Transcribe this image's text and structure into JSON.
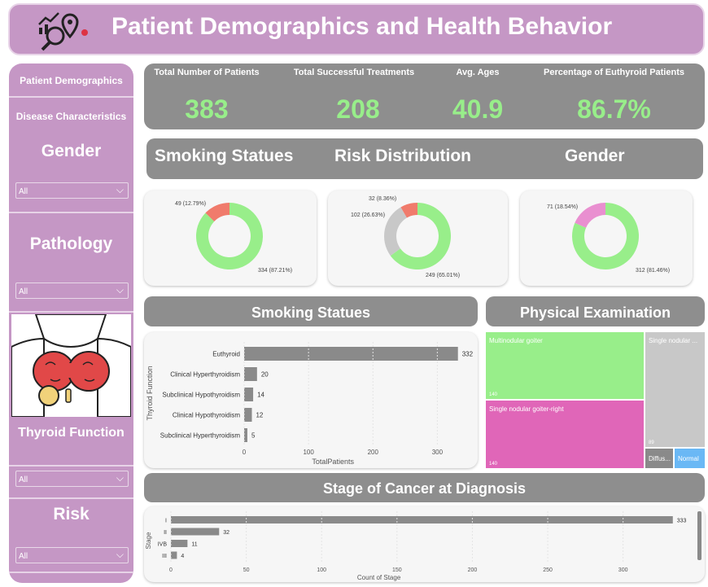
{
  "header": {
    "title": "Patient Demographics and Health Behavior"
  },
  "sidebar": {
    "nav": [
      "Patient Demographics",
      "Disease Characteristics"
    ],
    "filters": [
      {
        "label": "Gender",
        "value": "All"
      },
      {
        "label": "Pathology",
        "value": "All"
      },
      {
        "label": "Thyroid Function",
        "value": "All"
      },
      {
        "label": "Risk",
        "value": "All"
      }
    ]
  },
  "kpis": [
    {
      "label": "Total Number of Patients",
      "value": "383"
    },
    {
      "label": "Total Successful Treatments",
      "value": "208"
    },
    {
      "label": "Avg. Ages",
      "value": "40.9"
    },
    {
      "label": "Percentage of Euthyroid Patients",
      "value": "86.7%"
    }
  ],
  "section_titles": {
    "smoking": "Smoking Statues",
    "risk": "Risk Distribution",
    "gender": "Gender",
    "smoking2": "Smoking Statues",
    "physical": "Physical Examination",
    "stage": "Stage of Cancer at Diagnosis"
  },
  "colors": {
    "green": "#98ee8a",
    "salmon": "#f07b6c",
    "gray": "#c8c8c8",
    "pink": "#e98fd0",
    "magenta": "#e066b8",
    "blue": "#6ab8f5",
    "bar": "#8a8a8a"
  },
  "chart_data": [
    {
      "type": "pie",
      "title": "",
      "slices": [
        {
          "value": 334,
          "label": "334 (87.21%)"
        },
        {
          "value": 49,
          "label": "49 (12.79%)"
        }
      ]
    },
    {
      "type": "pie",
      "title": "",
      "slices": [
        {
          "value": 249,
          "label": "249 (65.01%)"
        },
        {
          "value": 102,
          "label": "102 (26.63%)"
        },
        {
          "value": 32,
          "label": "32 (8.36%)"
        }
      ]
    },
    {
      "type": "pie",
      "title": "",
      "slices": [
        {
          "value": 312,
          "label": "312 (81.46%)"
        },
        {
          "value": 71,
          "label": "71 (18.54%)"
        }
      ]
    },
    {
      "type": "bar",
      "orientation": "horizontal",
      "categories": [
        "Euthyroid",
        "Clinical Hyperthyroidism",
        "Subclinical Hypothyroidism",
        "Clinical Hypothyroidism",
        "Subclinical Hyperthyroidism"
      ],
      "values": [
        332,
        20,
        14,
        12,
        5
      ],
      "xlabel": "TotalPatients",
      "ylabel": "Thyroid Function",
      "xticks": [
        "0",
        "100",
        "200",
        "300"
      ],
      "xlim": [
        0,
        345
      ]
    },
    {
      "type": "heatmap",
      "subtype": "treemap",
      "items": [
        {
          "label": "Multinodular goiter",
          "value": 140,
          "value_label": "140"
        },
        {
          "label": "Single nodular goiter-right",
          "value": 140,
          "value_label": "140"
        },
        {
          "label": "Single nodular ...",
          "value": 89,
          "value_label": "89"
        },
        {
          "label": "Diffus...",
          "value": 7,
          "value_label": ""
        },
        {
          "label": "Normal",
          "value": 7,
          "value_label": ""
        }
      ]
    },
    {
      "type": "bar",
      "orientation": "horizontal",
      "categories": [
        "I",
        "II",
        "IVB",
        "III"
      ],
      "values": [
        333,
        32,
        11,
        4
      ],
      "xlabel": "Count of Stage",
      "ylabel": "Stage",
      "xticks": [
        "0",
        "50",
        "100",
        "150",
        "200",
        "250",
        "300"
      ],
      "xlim": [
        0,
        345
      ]
    }
  ]
}
